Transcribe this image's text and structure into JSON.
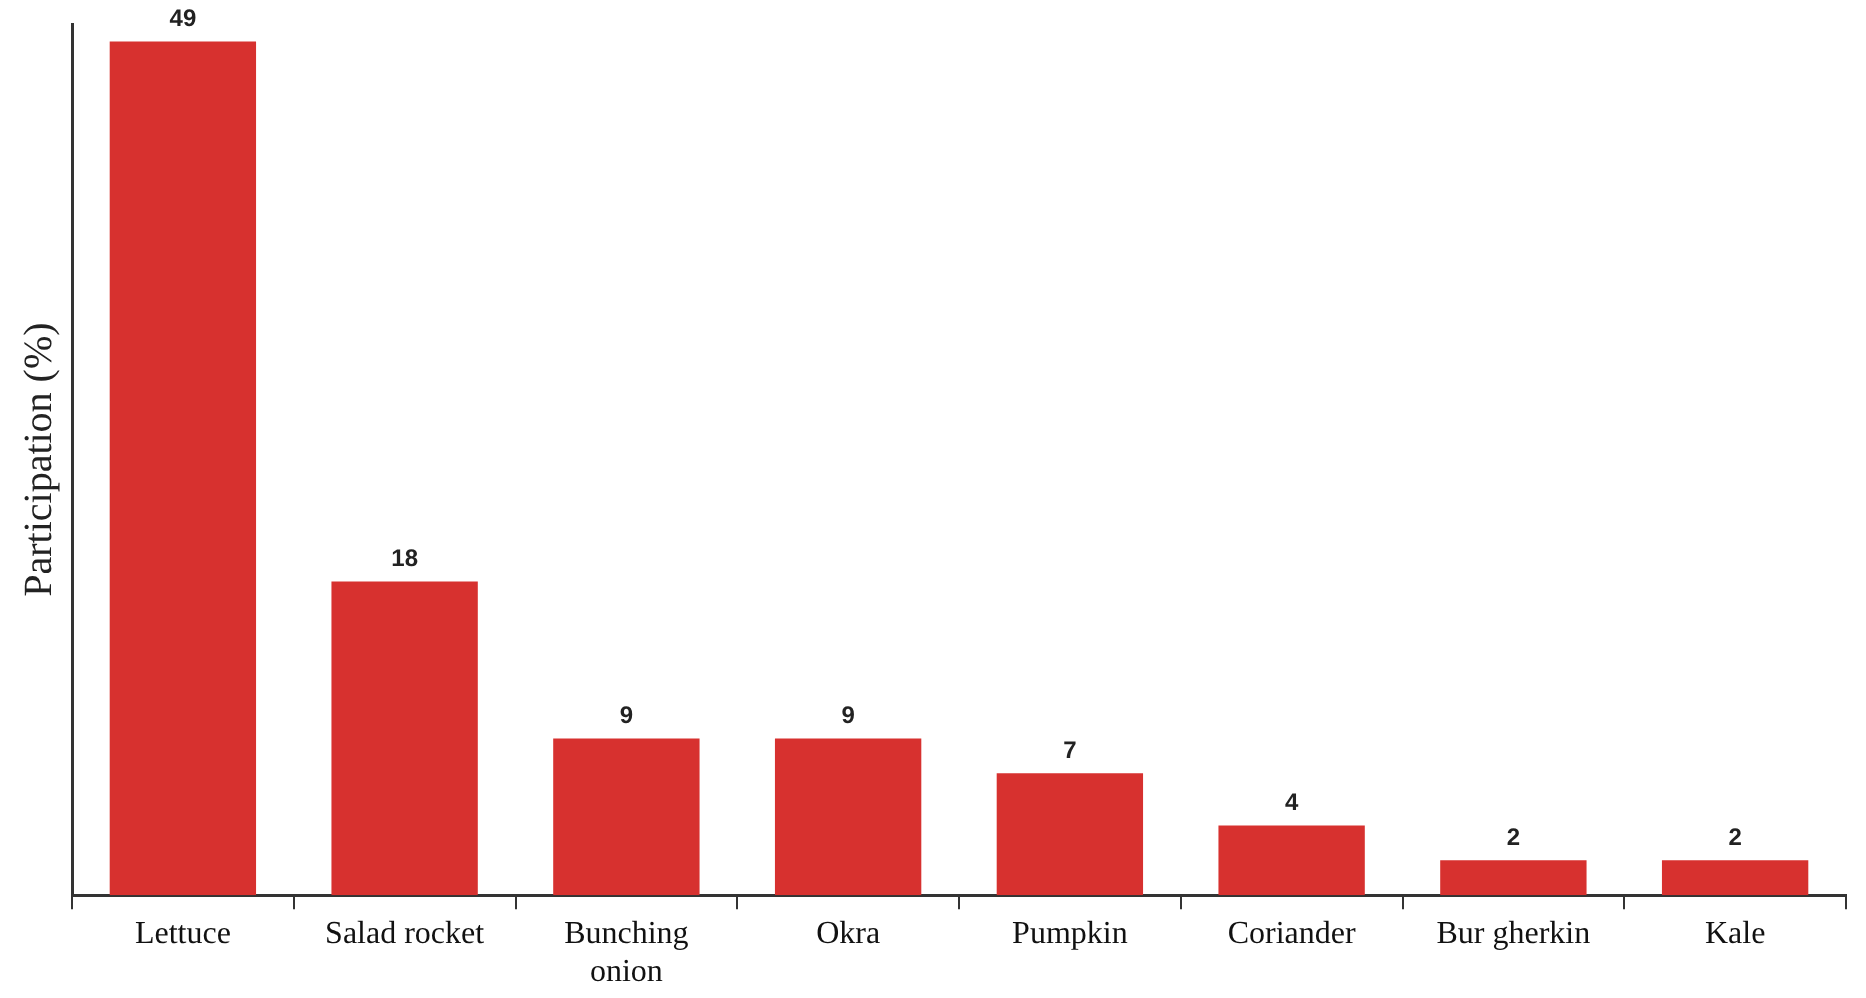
{
  "chart_data": {
    "type": "bar",
    "ylabel": "Participation (%)",
    "categories": [
      "Lettuce",
      "Salad rocket",
      "Bunching onion",
      "Okra",
      "Pumpkin",
      "Coriander",
      "Bur gherkin",
      "Kale"
    ],
    "values": [
      49,
      18,
      9,
      9,
      7,
      4,
      2,
      2
    ],
    "color": "#d7312f",
    "data_labels": true,
    "grid": false,
    "legend": false,
    "tick_labels": "x"
  }
}
